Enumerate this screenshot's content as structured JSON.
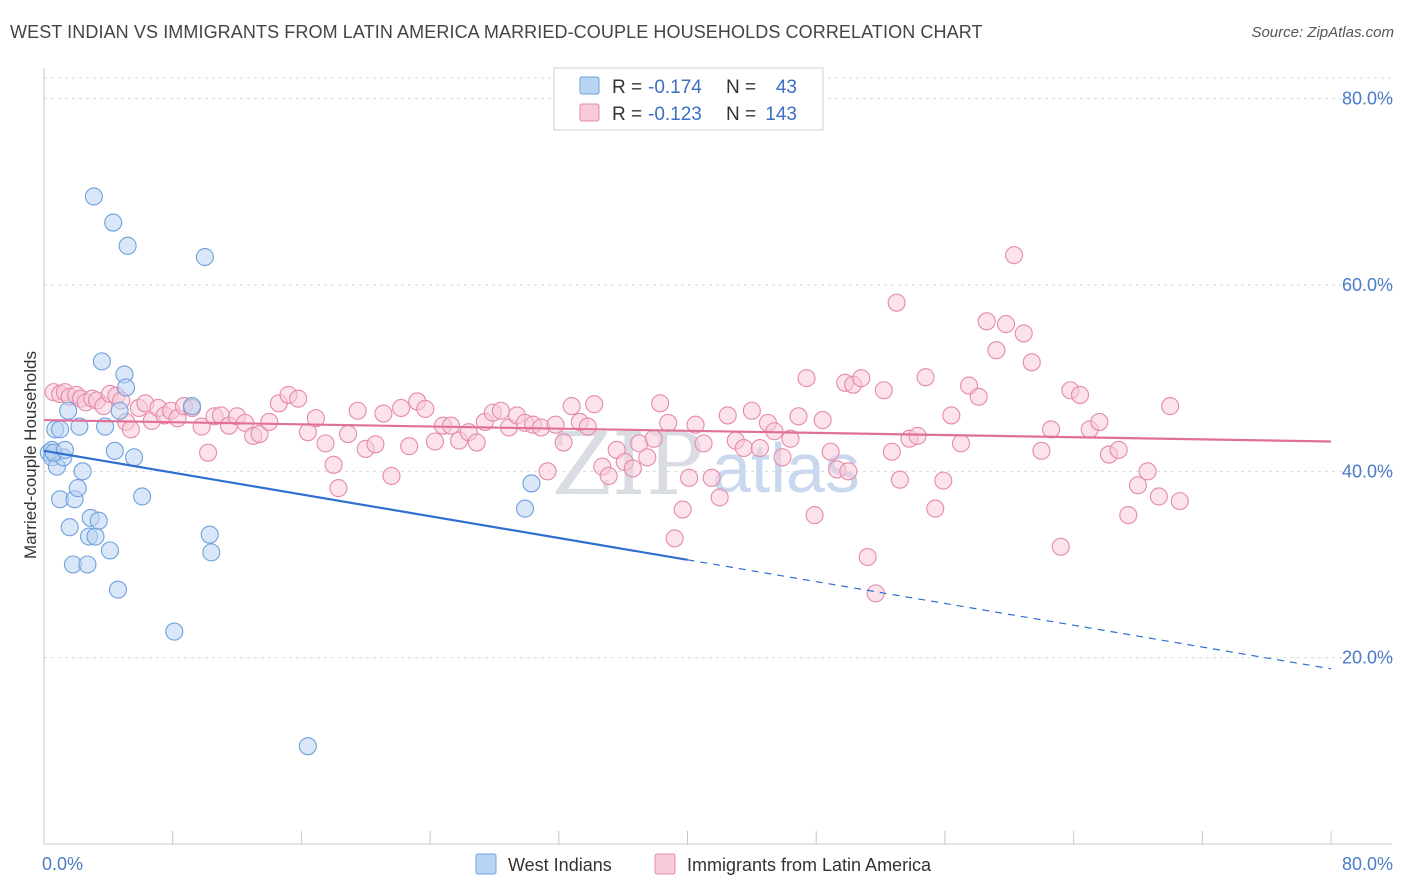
{
  "title": "WEST INDIAN VS IMMIGRANTS FROM LATIN AMERICA MARRIED-COUPLE HOUSEHOLDS CORRELATION CHART",
  "source": "Source: ZipAtlas.com",
  "watermark": {
    "part1": "ZIP",
    "part2": "atlas"
  },
  "colors": {
    "blue": "#6fa0dd",
    "blue_fill": "#b9d3f3",
    "blue_line": "#2f6fd1",
    "pink": "#e58aa9",
    "pink_fill": "#f8cada",
    "pink_line": "#e0709a",
    "tick": "#4a7cc9",
    "grid": "#d9d9d9"
  },
  "legend": {
    "r_label": "R =",
    "n_label": "N =",
    "rows": [
      {
        "r": "-0.174",
        "n": "43"
      },
      {
        "r": "-0.123",
        "n": "143"
      }
    ]
  },
  "chart_data": {
    "type": "scatter",
    "title": "WEST INDIAN VS IMMIGRANTS FROM LATIN AMERICA MARRIED-COUPLE HOUSEHOLDS CORRELATION CHART",
    "xlabel": "",
    "ylabel": "Married-couple Households",
    "xlim": [
      0,
      80
    ],
    "ylim": [
      0,
      82
    ],
    "x_tick_labels": [
      "0.0%",
      "80.0%"
    ],
    "y_ticks": [
      20,
      40,
      60,
      80
    ],
    "y_tick_labels": [
      "20.0%",
      "40.0%",
      "60.0%",
      "80.0%"
    ],
    "grid": true,
    "legend_position": "top-center",
    "series": [
      {
        "name": "West Indians",
        "color": "#6fa0dd",
        "trend": {
          "x0": 0,
          "y0": 42.2,
          "x1": 40,
          "y1": 30.5,
          "dash_to_x": 80,
          "dash_to_y": 18.8
        },
        "points": [
          [
            0.3,
            42
          ],
          [
            0.5,
            41.5
          ],
          [
            0.5,
            42.3
          ],
          [
            0.7,
            44.5
          ],
          [
            0.8,
            40.5
          ],
          [
            1.0,
            37
          ],
          [
            1.0,
            44.5
          ],
          [
            1.2,
            41.5
          ],
          [
            1.5,
            46.5
          ],
          [
            1.6,
            34
          ],
          [
            1.8,
            30
          ],
          [
            1.9,
            37
          ],
          [
            2.1,
            38.2
          ],
          [
            2.2,
            44.8
          ],
          [
            2.4,
            40
          ],
          [
            2.7,
            30
          ],
          [
            2.8,
            33
          ],
          [
            2.9,
            35
          ],
          [
            3.1,
            69.5
          ],
          [
            3.2,
            33
          ],
          [
            3.4,
            34.7
          ],
          [
            3.6,
            51.8
          ],
          [
            3.8,
            44.8
          ],
          [
            4.1,
            31.5
          ],
          [
            4.3,
            66.7
          ],
          [
            4.4,
            42.2
          ],
          [
            4.6,
            27.3
          ],
          [
            4.7,
            46.5
          ],
          [
            5.0,
            50.4
          ],
          [
            5.1,
            49
          ],
          [
            5.2,
            64.2
          ],
          [
            5.6,
            41.5
          ],
          [
            6.1,
            37.3
          ],
          [
            8.1,
            22.8
          ],
          [
            9.2,
            47
          ],
          [
            10.0,
            63
          ],
          [
            10.3,
            33.2
          ],
          [
            10.4,
            31.3
          ],
          [
            16.4,
            10.5
          ],
          [
            30.3,
            38.7
          ],
          [
            29.9,
            36
          ],
          [
            0.6,
            42
          ],
          [
            1.3,
            42.3
          ]
        ]
      },
      {
        "name": "Immigrants from Latin America",
        "color": "#e58aa9",
        "trend": {
          "x0": 0,
          "y0": 45.5,
          "x1": 80,
          "y1": 43.2
        },
        "points": [
          [
            0.6,
            48.5
          ],
          [
            1.0,
            48.3
          ],
          [
            1.3,
            48.5
          ],
          [
            1.6,
            48.0
          ],
          [
            2.0,
            48.2
          ],
          [
            2.3,
            47.8
          ],
          [
            2.6,
            47.4
          ],
          [
            3.0,
            47.8
          ],
          [
            3.3,
            47.6
          ],
          [
            3.7,
            47.0
          ],
          [
            4.1,
            48.3
          ],
          [
            4.5,
            48.1
          ],
          [
            4.8,
            47.6
          ],
          [
            5.1,
            45.3
          ],
          [
            5.4,
            44.5
          ],
          [
            5.9,
            46.8
          ],
          [
            6.3,
            47.3
          ],
          [
            6.7,
            45.4
          ],
          [
            7.1,
            46.8
          ],
          [
            7.5,
            46.0
          ],
          [
            7.9,
            46.5
          ],
          [
            8.3,
            45.7
          ],
          [
            8.7,
            47.0
          ],
          [
            9.2,
            46.8
          ],
          [
            9.8,
            44.8
          ],
          [
            10.2,
            42.0
          ],
          [
            10.6,
            45.9
          ],
          [
            11.0,
            46.0
          ],
          [
            11.5,
            44.9
          ],
          [
            12.0,
            45.9
          ],
          [
            12.5,
            45.2
          ],
          [
            13.0,
            43.8
          ],
          [
            13.4,
            44.0
          ],
          [
            14.0,
            45.3
          ],
          [
            14.6,
            47.3
          ],
          [
            15.2,
            48.2
          ],
          [
            15.8,
            47.8
          ],
          [
            16.4,
            44.2
          ],
          [
            16.9,
            45.7
          ],
          [
            17.5,
            43.0
          ],
          [
            18.0,
            40.7
          ],
          [
            18.3,
            38.2
          ],
          [
            18.9,
            44.0
          ],
          [
            19.5,
            46.5
          ],
          [
            20.0,
            42.4
          ],
          [
            20.6,
            42.9
          ],
          [
            21.1,
            46.2
          ],
          [
            21.6,
            39.5
          ],
          [
            22.2,
            46.8
          ],
          [
            22.7,
            42.7
          ],
          [
            23.2,
            47.5
          ],
          [
            23.7,
            46.7
          ],
          [
            24.3,
            43.2
          ],
          [
            24.8,
            44.9
          ],
          [
            25.3,
            44.9
          ],
          [
            25.8,
            43.3
          ],
          [
            26.4,
            44.2
          ],
          [
            26.9,
            43.1
          ],
          [
            27.4,
            45.3
          ],
          [
            27.9,
            46.3
          ],
          [
            28.4,
            46.5
          ],
          [
            28.9,
            44.7
          ],
          [
            29.4,
            46.0
          ],
          [
            29.9,
            45.2
          ],
          [
            30.4,
            45.0
          ],
          [
            30.9,
            44.7
          ],
          [
            31.3,
            40.0
          ],
          [
            31.8,
            45.0
          ],
          [
            32.3,
            43.1
          ],
          [
            32.8,
            47.0
          ],
          [
            33.3,
            45.3
          ],
          [
            33.8,
            44.8
          ],
          [
            34.2,
            47.2
          ],
          [
            34.7,
            40.5
          ],
          [
            35.1,
            39.5
          ],
          [
            35.6,
            42.3
          ],
          [
            36.1,
            41.0
          ],
          [
            36.6,
            40.3
          ],
          [
            37.0,
            43.0
          ],
          [
            37.5,
            41.5
          ],
          [
            37.9,
            43.5
          ],
          [
            38.3,
            47.3
          ],
          [
            38.8,
            45.2
          ],
          [
            39.2,
            32.8
          ],
          [
            39.7,
            35.9
          ],
          [
            40.1,
            39.3
          ],
          [
            40.5,
            45.0
          ],
          [
            41.0,
            43.0
          ],
          [
            41.5,
            39.3
          ],
          [
            42.0,
            37.2
          ],
          [
            42.5,
            46.0
          ],
          [
            43.0,
            43.3
          ],
          [
            43.5,
            42.5
          ],
          [
            44.0,
            46.5
          ],
          [
            44.5,
            42.5
          ],
          [
            45.0,
            45.2
          ],
          [
            45.4,
            44.3
          ],
          [
            45.9,
            41.5
          ],
          [
            46.4,
            43.5
          ],
          [
            46.9,
            45.9
          ],
          [
            47.4,
            50.0
          ],
          [
            47.9,
            35.3
          ],
          [
            48.4,
            45.5
          ],
          [
            48.9,
            42.1
          ],
          [
            49.3,
            40.2
          ],
          [
            49.8,
            49.5
          ],
          [
            50.3,
            49.3
          ],
          [
            50.8,
            50.0
          ],
          [
            51.2,
            30.8
          ],
          [
            51.7,
            26.9
          ],
          [
            52.2,
            48.7
          ],
          [
            52.7,
            42.1
          ],
          [
            53.2,
            39.1
          ],
          [
            53.8,
            43.5
          ],
          [
            54.3,
            43.8
          ],
          [
            54.8,
            50.1
          ],
          [
            55.4,
            36.0
          ],
          [
            55.9,
            39.0
          ],
          [
            56.4,
            46.0
          ],
          [
            57.0,
            43.0
          ],
          [
            57.5,
            49.2
          ],
          [
            58.1,
            48.0
          ],
          [
            58.6,
            56.1
          ],
          [
            59.2,
            53.0
          ],
          [
            59.8,
            55.8
          ],
          [
            60.3,
            63.2
          ],
          [
            60.9,
            54.8
          ],
          [
            61.4,
            51.7
          ],
          [
            62.0,
            42.2
          ],
          [
            62.6,
            44.5
          ],
          [
            63.2,
            31.9
          ],
          [
            63.8,
            48.7
          ],
          [
            64.4,
            48.2
          ],
          [
            65.0,
            44.5
          ],
          [
            65.6,
            45.3
          ],
          [
            66.2,
            41.8
          ],
          [
            66.8,
            42.3
          ],
          [
            67.4,
            35.3
          ],
          [
            68.0,
            38.5
          ],
          [
            68.6,
            40.0
          ],
          [
            69.3,
            37.3
          ],
          [
            70.0,
            47.0
          ],
          [
            70.6,
            36.8
          ],
          [
            53.0,
            58.1
          ],
          [
            50.0,
            40.0
          ]
        ]
      }
    ]
  },
  "bottom_legend": [
    {
      "label": "West Indians"
    },
    {
      "label": "Immigrants from Latin America"
    }
  ]
}
